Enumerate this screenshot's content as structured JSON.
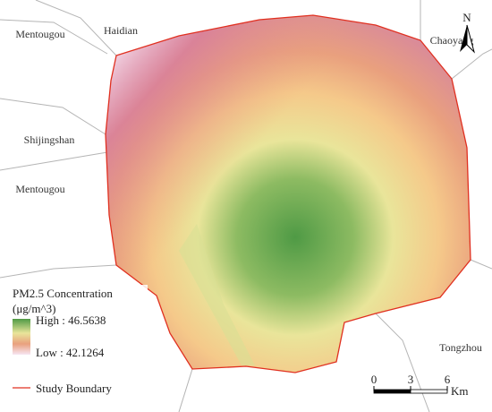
{
  "places": [
    "Mentougou",
    "Haidian",
    "Chaoyang",
    "Shijingshan",
    "Mentougou",
    "Tongzhou"
  ],
  "north": "N",
  "legend": {
    "title": "PM2.5 Concentration",
    "unit": "(μg/m^3)",
    "high": "High : 46.5638",
    "low": "Low : 42.1264",
    "boundary": "Study Boundary"
  },
  "scale_bar": {
    "ticks": [
      0,
      3,
      6
    ],
    "unit": "Km"
  }
}
